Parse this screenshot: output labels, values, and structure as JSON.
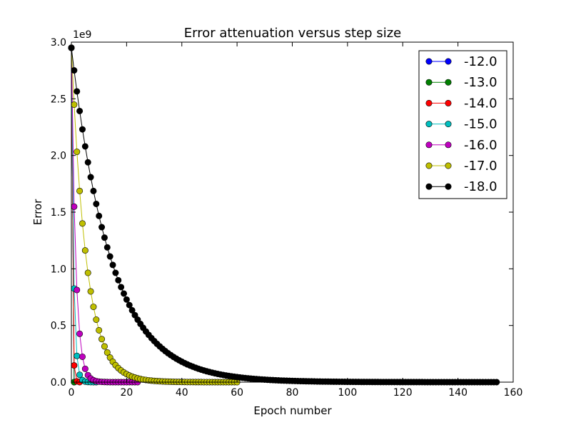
{
  "chart_data": {
    "type": "line",
    "title": "Error attenuation versus step size",
    "xlabel": "Epoch number",
    "ylabel": "Error",
    "offset_label": "1e9",
    "xlim": [
      0,
      160
    ],
    "ylim": [
      0,
      3.0
    ],
    "xticks": [
      "0",
      "20",
      "40",
      "60",
      "80",
      "100",
      "120",
      "140",
      "160"
    ],
    "yticks": [
      "0.0",
      "0.5",
      "1.0",
      "1.5",
      "2.0",
      "2.5",
      "3.0"
    ],
    "legend_position": "top-right",
    "grid": false,
    "series": [
      {
        "name": "-12.0",
        "color": "#0000ff",
        "epochs": 2,
        "start": 2.95,
        "ratio": 1e-05
      },
      {
        "name": "-13.0",
        "color": "#008000",
        "epochs": 2,
        "start": 2.95,
        "ratio": 0.0001
      },
      {
        "name": "-14.0",
        "color": "#ff0000",
        "epochs": 4,
        "start": 2.95,
        "ratio": 0.05
      },
      {
        "name": "-15.0",
        "color": "#00bfbf",
        "epochs": 10,
        "start": 2.95,
        "ratio": 0.28
      },
      {
        "name": "-16.0",
        "color": "#bf00bf",
        "epochs": 25,
        "start": 2.95,
        "ratio": 0.525
      },
      {
        "name": "-17.0",
        "color": "#bfbf00",
        "epochs": 61,
        "start": 2.95,
        "ratio": 0.83
      },
      {
        "name": "-18.0",
        "color": "#000000",
        "epochs": 155,
        "start": 2.95,
        "ratio": 0.9325
      }
    ]
  }
}
